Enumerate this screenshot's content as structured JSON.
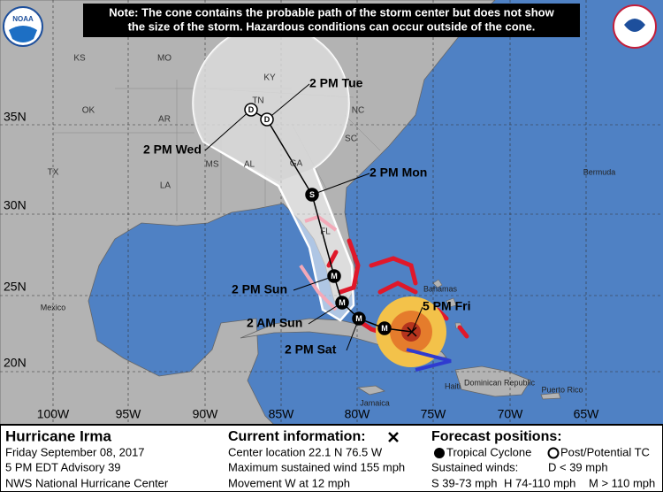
{
  "note": {
    "lines": [
      "Note: The cone contains the probable path of the storm center but does not show",
      "the size of the storm. Hazardous conditions can occur outside of the cone."
    ]
  },
  "logo": "NOAA",
  "map": {
    "states": [
      "KS",
      "MO",
      "KY",
      "OK",
      "AR",
      "TN",
      "NC",
      "SC",
      "MS",
      "AL",
      "GA",
      "TX",
      "LA",
      "FL"
    ],
    "latitudes": [
      "35N",
      "30N",
      "25N",
      "20N"
    ],
    "longitudes": [
      "100W",
      "95W",
      "90W",
      "85W",
      "80W",
      "75W",
      "70W",
      "65W"
    ],
    "places": [
      "Mexico",
      "Bermuda",
      "Bahamas",
      "Jamaica",
      "Dominican Republic",
      "Haiti",
      "Puerto Rico"
    ]
  },
  "track": {
    "labels": [
      "2 PM Tue",
      "2 PM Wed",
      "2 PM Mon",
      "2 PM Sun",
      "2 AM Sun",
      "2 PM Sat",
      "5 PM Fri"
    ],
    "symbols": [
      "D",
      "D",
      "S",
      "M",
      "M",
      "M",
      "M"
    ]
  },
  "info": {
    "storm": [
      "Hurricane Irma",
      "Friday September 08, 2017",
      "5 PM EDT Advisory 39",
      "NWS National Hurricane Center"
    ],
    "current": [
      "Current information:",
      "Center location 22.1 N 76.5 W",
      "Maximum sustained wind 155 mph",
      "Movement W at 12 mph"
    ],
    "forecast": {
      "title": "Forecast positions:",
      "tropical": "Tropical Cyclone",
      "post": "Post/Potential TC",
      "winds": "Sustained winds:",
      "d": "D < 39 mph",
      "s": "S 39-73 mph",
      "h": "H 74-110 mph",
      "m": "M > 110 mph"
    }
  }
}
